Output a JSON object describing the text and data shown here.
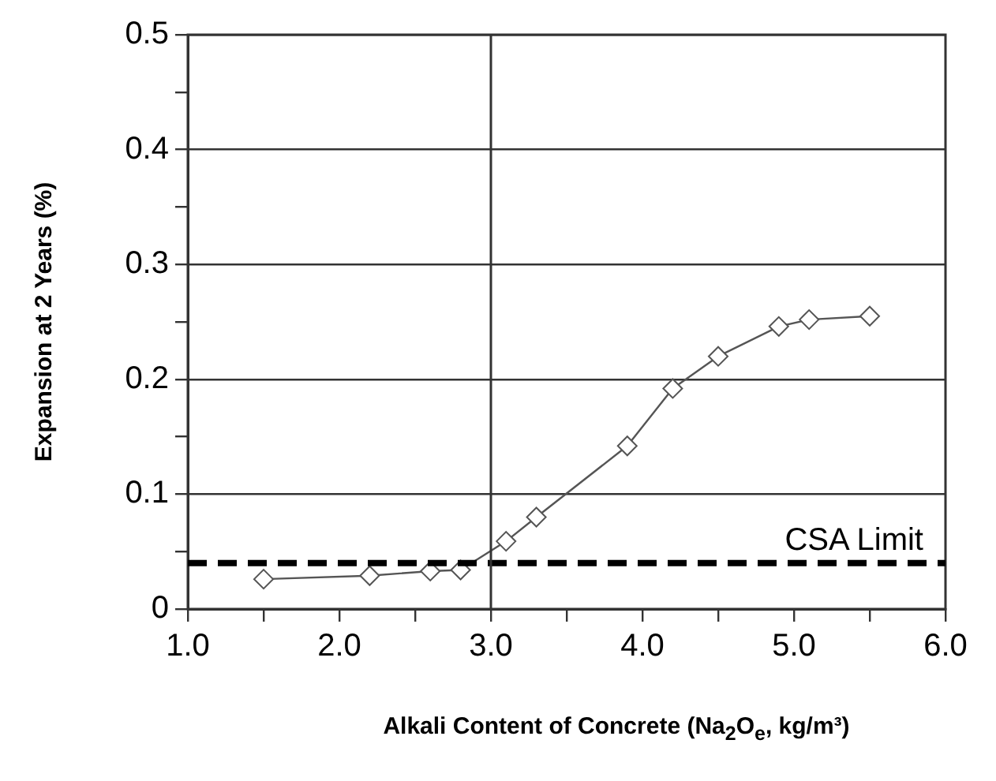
{
  "chart_data": {
    "type": "line",
    "xlabel": "Alkali Content of Concrete (Na$_{2}$O$_{e}$, kg/m³)",
    "ylabel": "Expansion at 2 Years (%)",
    "x": [
      1.5,
      2.2,
      2.6,
      2.8,
      3.1,
      3.3,
      3.9,
      4.2,
      4.5,
      4.9,
      5.1,
      5.5
    ],
    "series": [
      {
        "color": "#555555",
        "values": [
          0.026,
          0.029,
          0.033,
          0.034,
          0.059,
          0.08,
          0.142,
          0.192,
          0.22,
          0.246,
          0.252,
          0.255
        ]
      }
    ],
    "xlim": [
      1,
      6
    ],
    "xticks": [
      {
        "value": 1,
        "label": "1.0"
      },
      {
        "value": 1.5,
        "label": null
      },
      {
        "value": 2,
        "label": "2.0"
      },
      {
        "value": 2.5,
        "label": null
      },
      {
        "value": 3,
        "label": "3.0"
      },
      {
        "value": 3.5,
        "label": null
      },
      {
        "value": 4,
        "label": "4.0"
      },
      {
        "value": 4.5,
        "label": null
      },
      {
        "value": 5,
        "label": "5.0"
      },
      {
        "value": 5.5,
        "label": null
      },
      {
        "value": 6,
        "label": "6.0"
      }
    ],
    "ylim": [
      0,
      0.5
    ],
    "yticks": [
      0,
      {
        "value": 0.05,
        "label": null
      },
      0.1,
      {
        "value": 0.15,
        "label": null
      },
      0.2,
      {
        "value": 0.25,
        "label": null
      },
      0.3,
      {
        "value": 0.35,
        "label": null
      },
      0.4,
      {
        "value": 0.45,
        "label": null
      },
      0.5
    ],
    "ref_lines": [
      {
        "axis": "y",
        "value": 0.04,
        "label": "CSA Limit",
        "color": "#000000",
        "line_style": "dashed"
      },
      {
        "axis": "x",
        "value": 3,
        "label": null,
        "color": "#333333",
        "line_style": "solid"
      }
    ],
    "grid": "y",
    "legend": false,
    "marker": "diamond",
    "line_style": "solid"
  }
}
